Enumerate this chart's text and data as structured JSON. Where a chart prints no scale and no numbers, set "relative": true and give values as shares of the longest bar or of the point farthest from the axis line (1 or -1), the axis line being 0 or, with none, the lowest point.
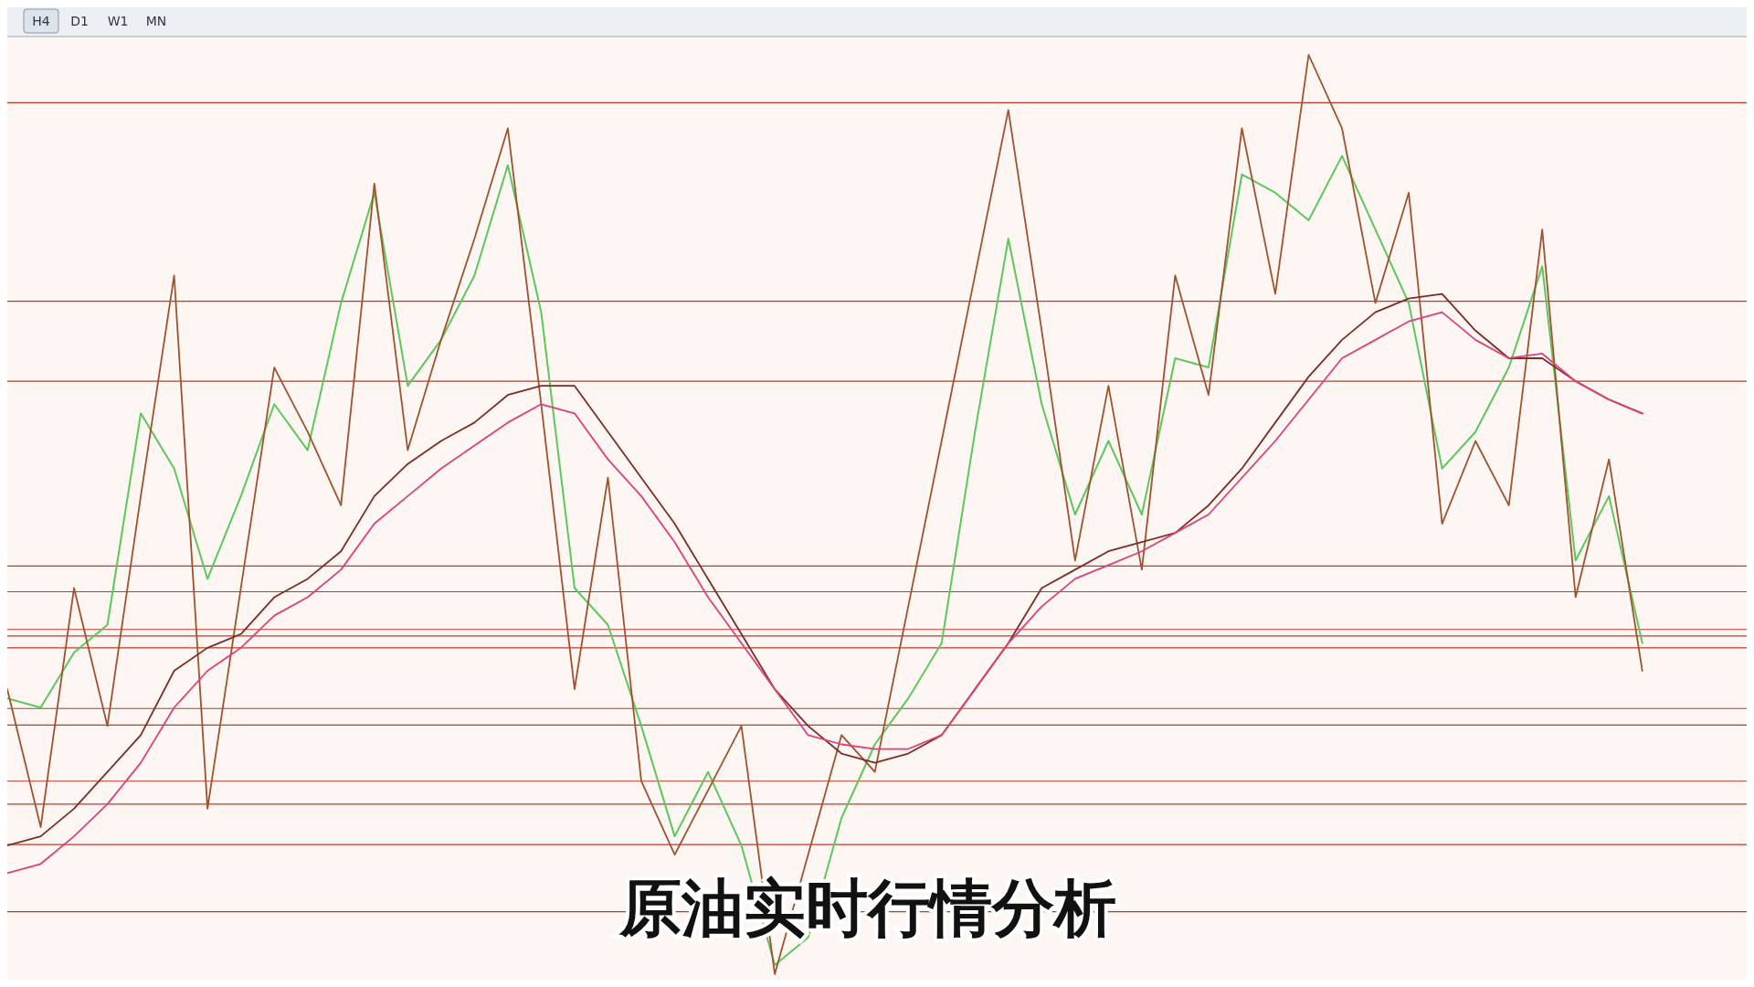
{
  "chart_data": {
    "type": "line",
    "title": "原油实时行情分析",
    "annotations": [
      "H4",
      "D1",
      "W1",
      "MN"
    ],
    "relative": true,
    "categories": [
      null,
      null,
      null,
      null,
      null,
      null,
      null,
      null,
      null,
      null,
      null,
      null,
      null,
      null,
      null,
      null,
      null,
      null,
      null,
      null,
      null,
      null,
      null,
      null,
      null,
      null,
      null,
      null,
      null,
      null,
      null,
      null,
      null,
      null,
      null,
      null,
      null,
      null,
      null,
      null,
      null,
      null,
      null,
      null,
      null,
      null,
      null,
      null,
      null,
      null
    ],
    "series": [
      {
        "color": "#5cc85c",
        "values": [
          0.3,
          0.29,
          0.35,
          0.38,
          0.61,
          0.55,
          0.43,
          0.52,
          0.62,
          0.57,
          0.73,
          0.85,
          0.64,
          0.69,
          0.76,
          0.88,
          0.72,
          0.42,
          0.38,
          0.27,
          0.15,
          0.22,
          0.14,
          0.01,
          0.04,
          0.17,
          0.25,
          0.3,
          0.36,
          0.59,
          0.8,
          0.62,
          0.5,
          0.58,
          0.5,
          0.67,
          0.66,
          0.87,
          0.85,
          0.82,
          0.89,
          0.81,
          0.73,
          0.55,
          0.59,
          0.66,
          0.77,
          0.45,
          0.52,
          0.36
        ]
      },
      {
        "color": "#a0522d",
        "values": [
          0.31,
          0.16,
          0.42,
          0.27,
          0.52,
          0.76,
          0.18,
          0.42,
          0.66,
          0.59,
          0.51,
          0.86,
          0.57,
          0.69,
          0.8,
          0.92,
          0.62,
          0.31,
          0.54,
          0.21,
          0.13,
          0.2,
          0.27,
          0,
          0.13,
          0.26,
          0.22,
          0.4,
          0.58,
          0.76,
          0.94,
          0.7,
          0.45,
          0.64,
          0.44,
          0.76,
          0.63,
          0.92,
          0.74,
          1,
          0.92,
          0.73,
          0.85,
          0.49,
          0.58,
          0.51,
          0.81,
          0.41,
          0.56,
          0.33
        ]
      },
      {
        "color": "#7b2d26",
        "values": [
          0.14,
          0.15,
          0.18,
          0.22,
          0.26,
          0.33,
          0.355,
          0.37,
          0.41,
          0.43,
          0.46,
          0.52,
          0.555,
          0.58,
          0.6,
          0.63,
          0.64,
          0.64,
          0.59,
          0.54,
          0.49,
          0.43,
          0.37,
          0.31,
          0.27,
          0.24,
          0.23,
          0.24,
          0.26,
          0.31,
          0.36,
          0.42,
          0.44,
          0.46,
          0.47,
          0.48,
          0.51,
          0.55,
          0.6,
          0.65,
          0.69,
          0.72,
          0.735,
          0.74,
          0.7,
          0.67,
          0.67,
          0.645,
          0.625,
          0.61
        ]
      },
      {
        "color": "#e0407a",
        "values": [
          0.11,
          0.12,
          0.15,
          0.185,
          0.23,
          0.29,
          0.33,
          0.355,
          0.39,
          0.41,
          0.44,
          0.49,
          0.52,
          0.55,
          0.575,
          0.6,
          0.62,
          0.61,
          0.56,
          0.52,
          0.47,
          0.41,
          0.36,
          0.31,
          0.26,
          0.25,
          0.245,
          0.245,
          0.26,
          0.31,
          0.36,
          0.4,
          0.43,
          0.445,
          0.46,
          0.48,
          0.5,
          0.54,
          0.58,
          0.625,
          0.67,
          0.69,
          0.71,
          0.72,
          0.69,
          0.67,
          0.675,
          0.645,
          0.625,
          0.61
        ]
      }
    ],
    "ref_lines": [
      {
        "axis": "y",
        "value": 0.948,
        "color": "#c0392b"
      },
      {
        "axis": "y",
        "value": 0.732,
        "color": "#c0392b"
      },
      {
        "axis": "y",
        "value": 0.645,
        "color": "#c0392b"
      },
      {
        "axis": "y",
        "value": 0.444,
        "color": "#c0392b"
      },
      {
        "axis": "y",
        "value": 0.416,
        "color": "#c0392b"
      },
      {
        "axis": "y",
        "value": 0.375,
        "color": "#c0392b"
      },
      {
        "axis": "y",
        "value": 0.368,
        "color": "#c0392b"
      },
      {
        "axis": "y",
        "value": 0.355,
        "color": "#c0392b"
      },
      {
        "axis": "y",
        "value": 0.289,
        "color": "#c0392b"
      },
      {
        "axis": "y",
        "value": 0.271,
        "color": "#c0392b"
      },
      {
        "axis": "y",
        "value": 0.21,
        "color": "#c0392b"
      },
      {
        "axis": "y",
        "value": 0.185,
        "color": "#c0392b"
      },
      {
        "axis": "y",
        "value": 0.141,
        "color": "#c0392b"
      },
      {
        "axis": "y",
        "value": 0.068,
        "color": "#c0392b"
      }
    ]
  }
}
